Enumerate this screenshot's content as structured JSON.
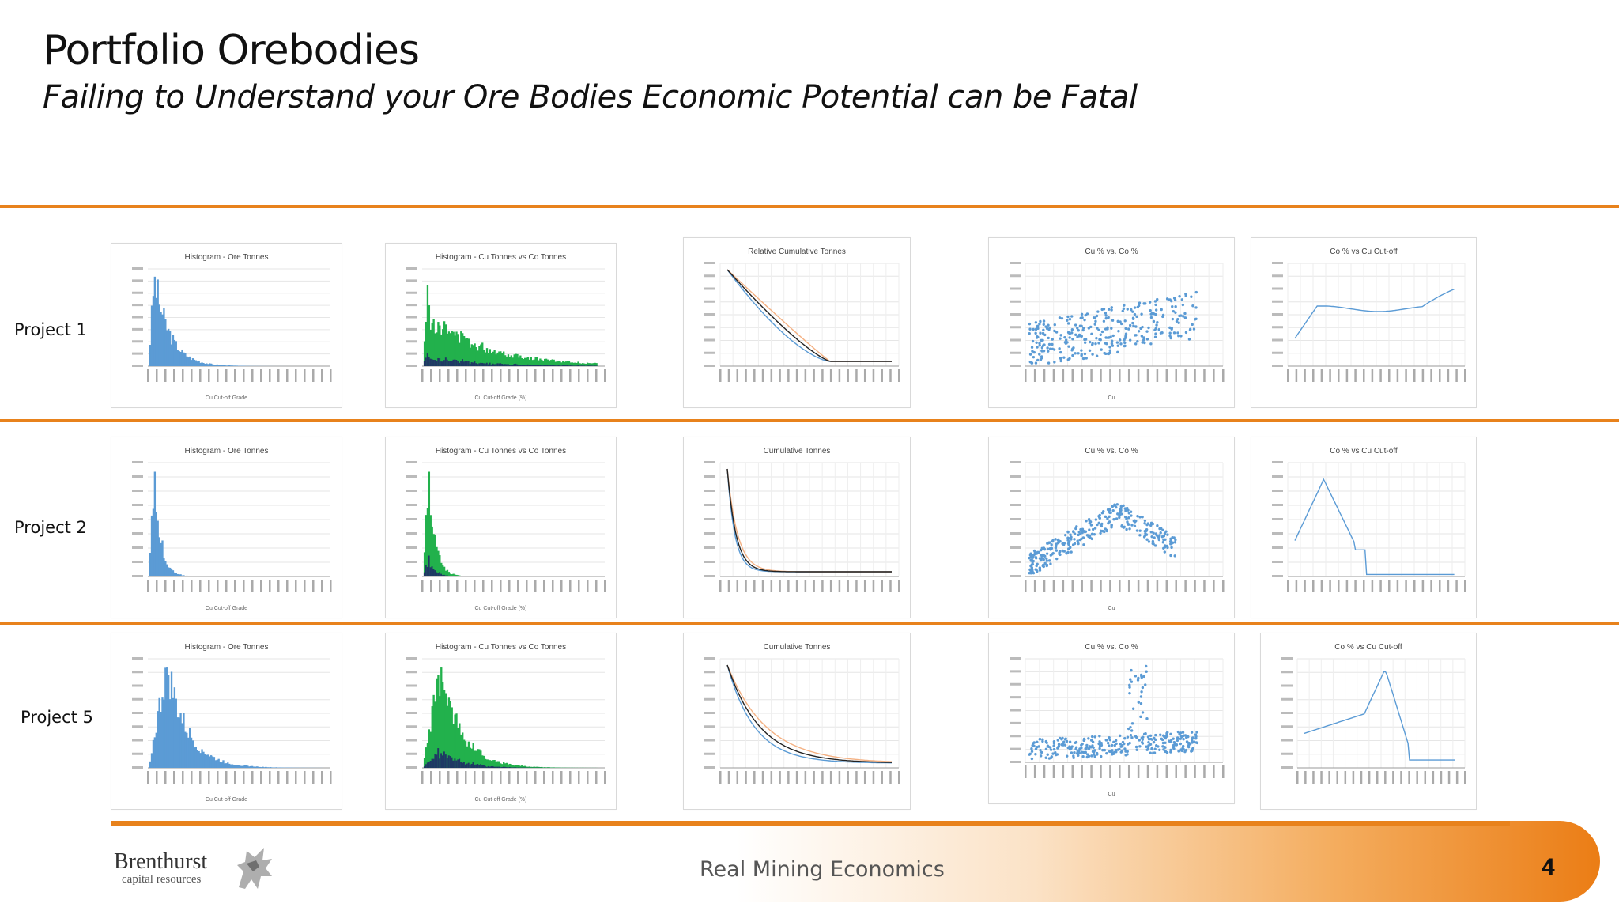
{
  "header": {
    "title": "Portfolio Orebodies",
    "subtitle": "Failing to Understand your Ore Bodies Economic Potential can be Fatal"
  },
  "projects": [
    {
      "label": "Project 1",
      "charts": [
        {
          "kind": "ore-hist",
          "title": "Histogram - Ore Tonnes",
          "xlabel": "Cu Cut-off Grade"
        },
        {
          "kind": "cu-co-hist",
          "title": "Histogram - Cu Tonnes vs Co Tonnes",
          "xlabel": "Cu Cut-off Grade (%)"
        },
        {
          "kind": "cumulative",
          "title": "Relative Cumulative Tonnes"
        },
        {
          "kind": "scatter",
          "title": "Cu % vs. Co %",
          "xlabel": "Cu"
        },
        {
          "kind": "line",
          "title": "Co % vs Cu Cut-off"
        }
      ]
    },
    {
      "label": "Project 2",
      "charts": [
        {
          "kind": "ore-hist",
          "title": "Histogram - Ore Tonnes",
          "xlabel": "Cu Cut-off Grade"
        },
        {
          "kind": "cu-co-hist",
          "title": "Histogram - Cu Tonnes vs Co Tonnes",
          "xlabel": "Cu Cut-off Grade (%)"
        },
        {
          "kind": "cumulative",
          "title": "Cumulative Tonnes"
        },
        {
          "kind": "scatter",
          "title": "Cu % vs. Co %",
          "xlabel": "Cu"
        },
        {
          "kind": "line",
          "title": "Co % vs Cu Cut-off"
        }
      ]
    },
    {
      "label": "Project 5",
      "charts": [
        {
          "kind": "ore-hist",
          "title": "Histogram - Ore Tonnes",
          "xlabel": "Cu Cut-off Grade"
        },
        {
          "kind": "cu-co-hist",
          "title": "Histogram - Cu Tonnes vs Co Tonnes",
          "xlabel": "Cu Cut-off Grade (%)"
        },
        {
          "kind": "cumulative",
          "title": "Cumulative Tonnes"
        },
        {
          "kind": "scatter",
          "title": "Cu % vs. Co %",
          "xlabel": "Cu"
        },
        {
          "kind": "line",
          "title": "Co % vs Cu Cut-off"
        }
      ]
    }
  ],
  "footer": {
    "tagline": "Real Mining Economics",
    "page_number": "4",
    "logo_name": "Brenthurst",
    "logo_sub": "capital resources"
  },
  "colors": {
    "accent": "#e8821c",
    "bar_blue": "#5b9bd5",
    "bar_green": "#22b14c",
    "bar_navy": "#1f3864",
    "curve_orange": "#f4b183"
  }
}
